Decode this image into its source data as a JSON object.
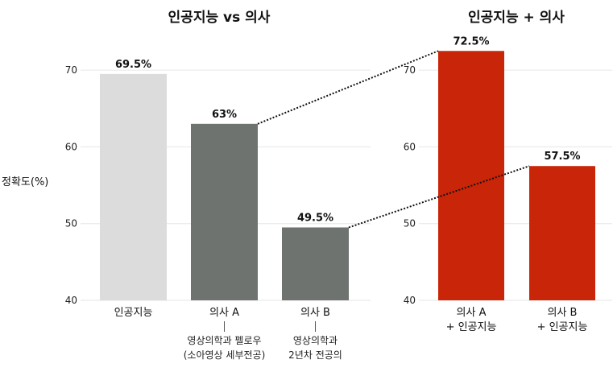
{
  "chart_data": [
    {
      "type": "bar",
      "title": "인공지능 vs 의사",
      "ylabel": "정확도(%)",
      "ylim": [
        40,
        75
      ],
      "yticks": [
        40,
        50,
        60,
        70
      ],
      "grid": true,
      "categories": [
        "인공지능",
        "의사 A",
        "의사 B"
      ],
      "values": [
        69.5,
        63,
        49.5
      ],
      "value_labels": [
        "69.5%",
        "63%",
        "49.5%"
      ],
      "category_notes": [
        [],
        [
          "영상의학과 펠로우",
          "(소아영상 세부전공)"
        ],
        [
          "영상의학과",
          "2년차 전공의"
        ]
      ],
      "colors": [
        "#dcdcdd",
        "#6e7370",
        "#6e7370"
      ]
    },
    {
      "type": "bar",
      "title": "인공지능 + 의사",
      "ylim": [
        40,
        75
      ],
      "yticks": [
        40,
        50,
        60,
        70
      ],
      "grid": true,
      "categories": [
        [
          "의사 A",
          "+ 인공지능"
        ],
        [
          "의사 B",
          "+ 인공지능"
        ]
      ],
      "values": [
        72.5,
        57.5
      ],
      "value_labels": [
        "72.5%",
        "57.5%"
      ],
      "colors": [
        "#c92508",
        "#c92508"
      ]
    }
  ]
}
